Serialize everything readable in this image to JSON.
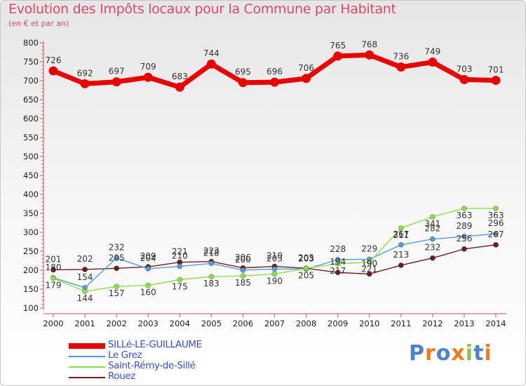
{
  "title": "Evolution des Impôts locaux pour la Commune par Habitant",
  "subtitle": "(en € et par an)",
  "logo_text": "Proxiti",
  "chart_data": {
    "type": "line",
    "title": "Evolution des Impôts locaux pour la Commune par Habitant",
    "subtitle": "(en € et par an)",
    "xlabel": "",
    "ylabel": "",
    "x": [
      "2000",
      "2001",
      "2002",
      "2003",
      "2004",
      "2005",
      "2006",
      "2007",
      "2008",
      "2009",
      "2010",
      "2011",
      "2012",
      "2013",
      "2014"
    ],
    "ylim": [
      100,
      800
    ],
    "yticks": [
      100,
      150,
      200,
      250,
      300,
      350,
      400,
      450,
      500,
      550,
      600,
      650,
      700,
      750,
      800
    ],
    "grid": false,
    "legend_position": "bottom-left",
    "series": [
      {
        "name": "SILLé-LE-GUILLAUME",
        "color": "#e80000",
        "values": [
          726,
          692,
          697,
          709,
          683,
          744,
          695,
          696,
          706,
          765,
          768,
          736,
          749,
          703,
          701
        ]
      },
      {
        "name": "Le Grez",
        "color": "#5b9bd5",
        "values": [
          180,
          154,
          232,
          204,
          210,
          218,
          200,
          203,
          203,
          228,
          229,
          267,
          282,
          289,
          296
        ]
      },
      {
        "name": "Saint-Rémy-de-Sillé",
        "color": "#8fdc4a",
        "values": [
          179,
          144,
          157,
          160,
          175,
          183,
          185,
          190,
          205,
          217,
          221,
          311,
          341,
          363,
          363
        ]
      },
      {
        "name": "Rouez",
        "color": "#6b1f1f",
        "values": [
          201,
          202,
          205,
          209,
          221,
          223,
          206,
          210,
          205,
          194,
          190,
          213,
          232,
          256,
          267
        ]
      }
    ]
  }
}
